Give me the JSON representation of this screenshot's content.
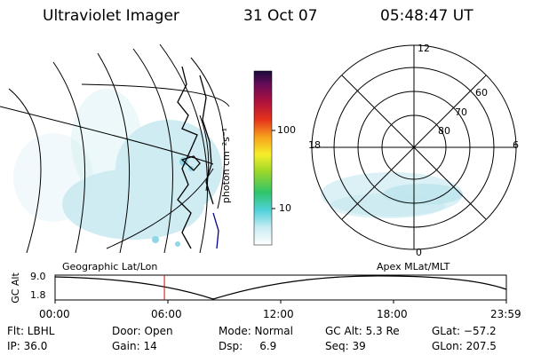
{
  "header": {
    "instrument": "Ultraviolet Imager",
    "date": "31 Oct 07",
    "time": "05:48:47 UT"
  },
  "colorbar": {
    "unit_label": "photon cm⁻²s⁻¹",
    "ticks": [
      "100",
      "10"
    ]
  },
  "polar": {
    "mlt_labels": {
      "top": "12",
      "left": "18",
      "right": "6",
      "bottom": "0"
    },
    "mlat_labels": [
      "60",
      "70",
      "80"
    ]
  },
  "orbit": {
    "axis_label": "GC Alt",
    "y_ticks": [
      "9.0",
      "1.8"
    ],
    "left_title": "Geographic Lat/Lon",
    "right_title": "Apex  MLat/MLT",
    "x_ticks": [
      "00:00",
      "06:00",
      "12:00",
      "18:00",
      "23:59"
    ],
    "current_time_marker_hours": 5.81
  },
  "info": {
    "row1": [
      "Flt: LBHL",
      "Door: Open",
      "Mode: Normal",
      "GC Alt: 5.3 Re",
      "GLat: −57.2"
    ],
    "row2": [
      "IP: 36.0",
      "Gain: 14",
      "Dsp:     6.9",
      "Seq: 39",
      "GLon: 207.5"
    ]
  }
}
